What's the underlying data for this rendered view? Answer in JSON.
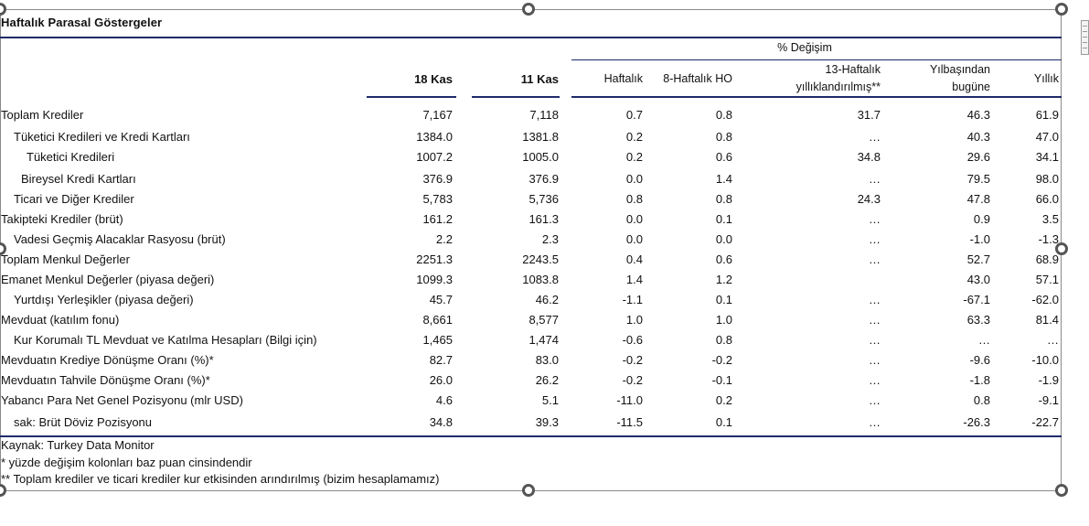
{
  "title": "Haftalık Parasal Göstergeler",
  "header": {
    "group": "% Değişim",
    "col_18kas": "18 Kas",
    "col_11kas": "11 Kas",
    "col_haftalik": "Haftalık",
    "col_8haftalik": "8-Haftalık HO",
    "col_13h_line1": "13-Haftalık",
    "col_13h_line2": "yıllıklandırılmış**",
    "col_ytd_line1": "Yılbaşından",
    "col_ytd_line2": "bugüne",
    "col_yillik": "Yıllık"
  },
  "rows": [
    {
      "label": "Toplam Krediler",
      "v18": "7,167",
      "v11": "7,118",
      "haftalik": "0.7",
      "h8": "0.8",
      "h13": "31.7",
      "ytd": "46.3",
      "yillik": "61.9"
    },
    {
      "label": "Tüketici Kredileri ve Kredi Kartları",
      "v18": "1384.0",
      "v11": "1381.8",
      "haftalik": "0.2",
      "h8": "0.8",
      "h13": "…",
      "ytd": "40.3",
      "yillik": "47.0"
    },
    {
      "label": "Tüketici Kredileri",
      "v18": "1007.2",
      "v11": "1005.0",
      "haftalik": "0.2",
      "h8": "0.6",
      "h13": "34.8",
      "ytd": "29.6",
      "yillik": "34.1"
    },
    {
      "label": "Bireysel Kredi Kartları",
      "v18": "376.9",
      "v11": "376.9",
      "haftalik": "0.0",
      "h8": "1.4",
      "h13": "…",
      "ytd": "79.5",
      "yillik": "98.0"
    },
    {
      "label": "Ticari ve Diğer Krediler",
      "v18": "5,783",
      "v11": "5,736",
      "haftalik": "0.8",
      "h8": "0.8",
      "h13": "24.3",
      "ytd": "47.8",
      "yillik": "66.0"
    },
    {
      "label": "Takipteki Krediler (brüt)",
      "v18": "161.2",
      "v11": "161.3",
      "haftalik": "0.0",
      "h8": "0.1",
      "h13": "…",
      "ytd": "0.9",
      "yillik": "3.5"
    },
    {
      "label": "Vadesi Geçmiş Alacaklar Rasyosu (brüt)",
      "v18": "2.2",
      "v11": "2.3",
      "haftalik": "0.0",
      "h8": "0.0",
      "h13": "…",
      "ytd": "-1.0",
      "yillik": "-1.3"
    },
    {
      "label": "Toplam Menkul Değerler",
      "v18": "2251.3",
      "v11": "2243.5",
      "haftalik": "0.4",
      "h8": "0.6",
      "h13": "…",
      "ytd": "52.7",
      "yillik": "68.9"
    },
    {
      "label": "Emanet Menkul Değerler (piyasa değeri)",
      "v18": "1099.3",
      "v11": "1083.8",
      "haftalik": "1.4",
      "h8": "1.2",
      "h13": "",
      "ytd": "43.0",
      "yillik": "57.1"
    },
    {
      "label": "Yurtdışı Yerleşikler (piyasa değeri)",
      "v18": "45.7",
      "v11": "46.2",
      "haftalik": "-1.1",
      "h8": "0.1",
      "h13": "…",
      "ytd": "-67.1",
      "yillik": "-62.0"
    },
    {
      "label": "Mevduat (katılım fonu)",
      "v18": "8,661",
      "v11": "8,577",
      "haftalik": "1.0",
      "h8": "1.0",
      "h13": "…",
      "ytd": "63.3",
      "yillik": "81.4"
    },
    {
      "label": "Kur Korumalı TL Mevduat ve Katılma Hesapları (Bilgi için)",
      "v18": "1,465",
      "v11": "1,474",
      "haftalik": "-0.6",
      "h8": "0.8",
      "h13": "…",
      "ytd": "…",
      "yillik": "…"
    },
    {
      "label": "Mevduatın Krediye Dönüşme Oranı (%)*",
      "v18": "82.7",
      "v11": "83.0",
      "haftalik": "-0.2",
      "h8": "-0.2",
      "h13": "…",
      "ytd": "-9.6",
      "yillik": "-10.0"
    },
    {
      "label": "Mevduatın Tahvile Dönüşme Oranı (%)*",
      "v18": "26.0",
      "v11": "26.2",
      "haftalik": "-0.2",
      "h8": "-0.1",
      "h13": "…",
      "ytd": "-1.8",
      "yillik": "-1.9"
    },
    {
      "label": "Yabancı Para Net Genel Pozisyonu (mlr USD)",
      "v18": "4.6",
      "v11": "5.1",
      "haftalik": "-11.0",
      "h8": "0.2",
      "h13": "…",
      "ytd": "0.8",
      "yillik": "-9.1"
    },
    {
      "label": "sak: Brüt Döviz Pozisyonu",
      "v18": "34.8",
      "v11": "39.3",
      "haftalik": "-11.5",
      "h8": "0.1",
      "h13": "…",
      "ytd": "-26.3",
      "yillik": "-22.7"
    }
  ],
  "footer": {
    "source": "Kaynak: Turkey Data Monitor",
    "note1": "* yüzde değişim kolonları baz puan cinsindendir",
    "note2": "** Toplam krediler ve ticari krediler kur etkisinden arındırılmış (bizim hesaplamamız)"
  }
}
